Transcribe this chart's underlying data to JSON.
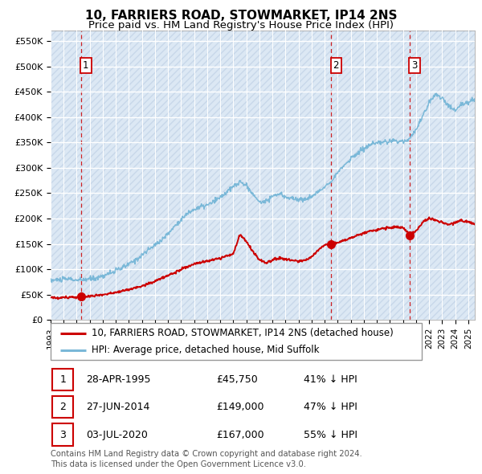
{
  "title": "10, FARRIERS ROAD, STOWMARKET, IP14 2NS",
  "subtitle": "Price paid vs. HM Land Registry's House Price Index (HPI)",
  "ylabel_vals": [
    "£0",
    "£50K",
    "£100K",
    "£150K",
    "£200K",
    "£250K",
    "£300K",
    "£350K",
    "£400K",
    "£450K",
    "£500K",
    "£550K"
  ],
  "ytick_vals": [
    0,
    50000,
    100000,
    150000,
    200000,
    250000,
    300000,
    350000,
    400000,
    450000,
    500000,
    550000
  ],
  "ylim": [
    0,
    570000
  ],
  "xlim_start": 1993.0,
  "xlim_end": 2025.5,
  "hpi_color": "#7ab8d8",
  "price_color": "#cc0000",
  "marker_color": "#cc0000",
  "vline_color": "#cc0000",
  "bg_hatch_face": "#dce8f0",
  "bg_hatch_edge": "#c0d4e4",
  "grid_color": "#ffffff",
  "transactions": [
    {
      "num": 1,
      "date_x": 1995.32,
      "price": 45750,
      "label": "28-APR-1995",
      "price_str": "£45,750",
      "pct": "41% ↓ HPI"
    },
    {
      "num": 2,
      "date_x": 2014.49,
      "price": 149000,
      "label": "27-JUN-2014",
      "price_str": "£149,000",
      "pct": "47% ↓ HPI"
    },
    {
      "num": 3,
      "date_x": 2020.5,
      "price": 167000,
      "label": "03-JUL-2020",
      "price_str": "£167,000",
      "pct": "55% ↓ HPI"
    }
  ],
  "legend_property_label": "10, FARRIERS ROAD, STOWMARKET, IP14 2NS (detached house)",
  "legend_hpi_label": "HPI: Average price, detached house, Mid Suffolk",
  "footer_line1": "Contains HM Land Registry data © Crown copyright and database right 2024.",
  "footer_line2": "This data is licensed under the Open Government Licence v3.0.",
  "hpi_anchors": [
    [
      1993.0,
      78000
    ],
    [
      1993.5,
      79000
    ],
    [
      1994.0,
      80000
    ],
    [
      1994.5,
      81000
    ],
    [
      1995.0,
      78000
    ],
    [
      1995.5,
      79000
    ],
    [
      1996.0,
      81000
    ],
    [
      1996.5,
      83000
    ],
    [
      1997.0,
      87000
    ],
    [
      1997.5,
      92000
    ],
    [
      1998.0,
      97000
    ],
    [
      1998.5,
      103000
    ],
    [
      1999.0,
      110000
    ],
    [
      1999.5,
      118000
    ],
    [
      2000.0,
      128000
    ],
    [
      2000.5,
      138000
    ],
    [
      2001.0,
      148000
    ],
    [
      2001.5,
      158000
    ],
    [
      2002.0,
      170000
    ],
    [
      2002.5,
      185000
    ],
    [
      2003.0,
      198000
    ],
    [
      2003.5,
      210000
    ],
    [
      2004.0,
      218000
    ],
    [
      2004.5,
      223000
    ],
    [
      2005.0,
      226000
    ],
    [
      2005.5,
      233000
    ],
    [
      2006.0,
      242000
    ],
    [
      2006.5,
      252000
    ],
    [
      2007.0,
      263000
    ],
    [
      2007.5,
      272000
    ],
    [
      2008.0,
      265000
    ],
    [
      2008.5,
      248000
    ],
    [
      2009.0,
      232000
    ],
    [
      2009.5,
      235000
    ],
    [
      2010.0,
      244000
    ],
    [
      2010.5,
      248000
    ],
    [
      2011.0,
      243000
    ],
    [
      2011.5,
      240000
    ],
    [
      2012.0,
      237000
    ],
    [
      2012.5,
      238000
    ],
    [
      2013.0,
      243000
    ],
    [
      2013.5,
      252000
    ],
    [
      2014.0,
      263000
    ],
    [
      2014.5,
      275000
    ],
    [
      2015.0,
      290000
    ],
    [
      2015.5,
      305000
    ],
    [
      2016.0,
      318000
    ],
    [
      2016.5,
      328000
    ],
    [
      2017.0,
      338000
    ],
    [
      2017.5,
      345000
    ],
    [
      2018.0,
      348000
    ],
    [
      2018.5,
      350000
    ],
    [
      2019.0,
      352000
    ],
    [
      2019.5,
      353000
    ],
    [
      2020.0,
      352000
    ],
    [
      2020.5,
      358000
    ],
    [
      2021.0,
      375000
    ],
    [
      2021.5,
      400000
    ],
    [
      2022.0,
      430000
    ],
    [
      2022.5,
      445000
    ],
    [
      2023.0,
      438000
    ],
    [
      2023.5,
      420000
    ],
    [
      2024.0,
      415000
    ],
    [
      2024.5,
      425000
    ],
    [
      2025.0,
      430000
    ],
    [
      2025.5,
      435000
    ]
  ],
  "price_anchors": [
    [
      1993.0,
      44000
    ],
    [
      1994.0,
      44500
    ],
    [
      1995.0,
      45000
    ],
    [
      1995.32,
      45750
    ],
    [
      1996.0,
      47000
    ],
    [
      1997.0,
      50000
    ],
    [
      1998.0,
      54000
    ],
    [
      1999.0,
      60000
    ],
    [
      2000.0,
      67000
    ],
    [
      2001.0,
      76000
    ],
    [
      2002.0,
      88000
    ],
    [
      2003.0,
      100000
    ],
    [
      2004.0,
      110000
    ],
    [
      2005.0,
      116000
    ],
    [
      2006.0,
      122000
    ],
    [
      2007.0,
      130000
    ],
    [
      2007.5,
      168000
    ],
    [
      2008.0,
      155000
    ],
    [
      2008.5,
      135000
    ],
    [
      2009.0,
      118000
    ],
    [
      2009.5,
      112000
    ],
    [
      2010.0,
      118000
    ],
    [
      2010.5,
      122000
    ],
    [
      2011.0,
      120000
    ],
    [
      2011.5,
      117000
    ],
    [
      2012.0,
      115000
    ],
    [
      2012.5,
      118000
    ],
    [
      2013.0,
      125000
    ],
    [
      2013.5,
      138000
    ],
    [
      2014.0,
      148000
    ],
    [
      2014.49,
      149000
    ],
    [
      2015.0,
      153000
    ],
    [
      2015.5,
      157000
    ],
    [
      2016.0,
      162000
    ],
    [
      2016.5,
      167000
    ],
    [
      2017.0,
      171000
    ],
    [
      2017.5,
      175000
    ],
    [
      2018.0,
      178000
    ],
    [
      2018.5,
      180000
    ],
    [
      2019.0,
      182000
    ],
    [
      2019.5,
      183000
    ],
    [
      2020.0,
      182000
    ],
    [
      2020.5,
      167000
    ],
    [
      2021.0,
      175000
    ],
    [
      2021.5,
      192000
    ],
    [
      2022.0,
      200000
    ],
    [
      2022.5,
      197000
    ],
    [
      2023.0,
      192000
    ],
    [
      2023.5,
      188000
    ],
    [
      2024.0,
      192000
    ],
    [
      2024.5,
      196000
    ],
    [
      2025.0,
      193000
    ],
    [
      2025.5,
      190000
    ]
  ]
}
